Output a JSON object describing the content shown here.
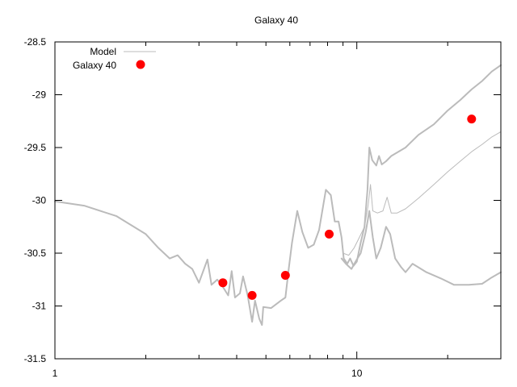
{
  "chart_data": {
    "type": "scatter",
    "title": "Galaxy 40",
    "xlabel": "",
    "ylabel": "",
    "xscale": "log",
    "xlim": [
      1,
      30
    ],
    "ylim": [
      -31.5,
      -28.5
    ],
    "x_ticks": [
      {
        "value": 1,
        "label": "1"
      },
      {
        "value": 10,
        "label": "10"
      }
    ],
    "x_minor_ticks": [
      2,
      3,
      4,
      5,
      6,
      7,
      8,
      9,
      20
    ],
    "y_ticks": [
      {
        "value": -28.5,
        "label": "-28.5"
      },
      {
        "value": -29,
        "label": "-29"
      },
      {
        "value": -29.5,
        "label": "-29.5"
      },
      {
        "value": -30,
        "label": "-30"
      },
      {
        "value": -30.5,
        "label": "-30.5"
      },
      {
        "value": -31,
        "label": "-31"
      },
      {
        "value": -31.5,
        "label": "-31.5"
      }
    ],
    "legend": {
      "placement": "top-left",
      "entries": [
        {
          "label": "Model",
          "marker": "line",
          "color": "#bbbbbb"
        },
        {
          "label": "Galaxy 40",
          "marker": "circle",
          "color": "#ff0000"
        }
      ]
    },
    "series": [
      {
        "name": "Model",
        "kind": "line",
        "color": "#bbbbbb",
        "width": 2,
        "points": [
          [
            1,
            -30.01
          ],
          [
            1.25,
            -30.05
          ],
          [
            1.6,
            -30.15
          ],
          [
            2.0,
            -30.32
          ],
          [
            2.2,
            -30.45
          ],
          [
            2.4,
            -30.55
          ],
          [
            2.55,
            -30.52
          ],
          [
            2.7,
            -30.6
          ],
          [
            2.85,
            -30.65
          ],
          [
            3.0,
            -30.78
          ],
          [
            3.2,
            -30.56
          ],
          [
            3.3,
            -30.8
          ],
          [
            3.45,
            -30.75
          ],
          [
            3.6,
            -30.82
          ],
          [
            3.75,
            -30.9
          ],
          [
            3.85,
            -30.67
          ],
          [
            3.95,
            -30.92
          ],
          [
            4.1,
            -30.88
          ],
          [
            4.2,
            -30.72
          ],
          [
            4.35,
            -30.9
          ],
          [
            4.5,
            -31.15
          ],
          [
            4.6,
            -30.95
          ],
          [
            4.75,
            -31.12
          ],
          [
            4.85,
            -31.18
          ],
          [
            4.9,
            -31.01
          ],
          [
            5.2,
            -31.02
          ],
          [
            5.6,
            -30.95
          ],
          [
            5.8,
            -30.92
          ],
          [
            5.95,
            -30.65
          ],
          [
            6.1,
            -30.4
          ],
          [
            6.35,
            -30.1
          ],
          [
            6.6,
            -30.3
          ],
          [
            6.9,
            -30.45
          ],
          [
            7.2,
            -30.42
          ],
          [
            7.5,
            -30.28
          ],
          [
            7.9,
            -29.9
          ],
          [
            8.2,
            -29.95
          ],
          [
            8.45,
            -30.2
          ],
          [
            8.7,
            -30.2
          ],
          [
            8.9,
            -30.35
          ],
          [
            9.05,
            -30.55
          ],
          [
            9.3,
            -30.6
          ],
          [
            9.5,
            -30.55
          ],
          [
            9.75,
            -30.62
          ],
          [
            10.0,
            -30.58
          ],
          [
            10.3,
            -30.4
          ],
          [
            10.6,
            -30.25
          ],
          [
            10.85,
            -29.9
          ],
          [
            11.0,
            -29.5
          ],
          [
            11.25,
            -29.62
          ],
          [
            11.6,
            -29.67
          ],
          [
            11.85,
            -29.58
          ],
          [
            12.1,
            -29.66
          ],
          [
            12.5,
            -29.63
          ],
          [
            13.0,
            -29.58
          ],
          [
            14.5,
            -29.5
          ],
          [
            16.0,
            -29.38
          ],
          [
            18.0,
            -29.28
          ],
          [
            20.0,
            -29.15
          ],
          [
            22.0,
            -29.05
          ],
          [
            24.0,
            -28.95
          ],
          [
            26.0,
            -28.87
          ],
          [
            28.0,
            -28.78
          ],
          [
            30.0,
            -28.72
          ]
        ]
      },
      {
        "name": "",
        "kind": "line",
        "color": "#bbbbbb",
        "width": 1,
        "points": [
          [
            9.0,
            -30.5
          ],
          [
            9.4,
            -30.52
          ],
          [
            9.8,
            -30.45
          ],
          [
            10.2,
            -30.35
          ],
          [
            10.6,
            -30.25
          ],
          [
            10.9,
            -30.05
          ],
          [
            11.1,
            -29.85
          ],
          [
            11.3,
            -30.1
          ],
          [
            11.7,
            -30.12
          ],
          [
            12.2,
            -30.1
          ],
          [
            12.6,
            -29.97
          ],
          [
            13.0,
            -30.12
          ],
          [
            13.6,
            -30.12
          ],
          [
            14.5,
            -30.08
          ],
          [
            16.0,
            -29.98
          ],
          [
            18.0,
            -29.85
          ],
          [
            20.0,
            -29.73
          ],
          [
            22.0,
            -29.63
          ],
          [
            24.0,
            -29.54
          ],
          [
            26.0,
            -29.47
          ],
          [
            28.0,
            -29.4
          ],
          [
            30.0,
            -29.35
          ]
        ]
      },
      {
        "name": "",
        "kind": "line",
        "color": "#bbbbbb",
        "width": 2,
        "points": [
          [
            8.9,
            -30.55
          ],
          [
            9.2,
            -30.6
          ],
          [
            9.6,
            -30.65
          ],
          [
            9.9,
            -30.58
          ],
          [
            10.3,
            -30.5
          ],
          [
            10.7,
            -30.3
          ],
          [
            11.0,
            -30.1
          ],
          [
            11.3,
            -30.35
          ],
          [
            11.6,
            -30.55
          ],
          [
            12.0,
            -30.45
          ],
          [
            12.5,
            -30.25
          ],
          [
            12.9,
            -30.32
          ],
          [
            13.4,
            -30.55
          ],
          [
            14.0,
            -30.63
          ],
          [
            14.5,
            -30.68
          ],
          [
            15.3,
            -30.6
          ],
          [
            17.0,
            -30.68
          ],
          [
            19.0,
            -30.74
          ],
          [
            21.0,
            -30.8
          ],
          [
            23.5,
            -30.8
          ],
          [
            26.0,
            -30.79
          ],
          [
            28.0,
            -30.73
          ],
          [
            30.0,
            -30.68
          ]
        ]
      },
      {
        "name": "Galaxy 40",
        "kind": "points",
        "color": "#ff0000",
        "points": [
          [
            3.6,
            -30.78
          ],
          [
            4.5,
            -30.9
          ],
          [
            5.8,
            -30.71
          ],
          [
            8.1,
            -30.32
          ],
          [
            24.0,
            -29.23
          ]
        ]
      }
    ]
  }
}
